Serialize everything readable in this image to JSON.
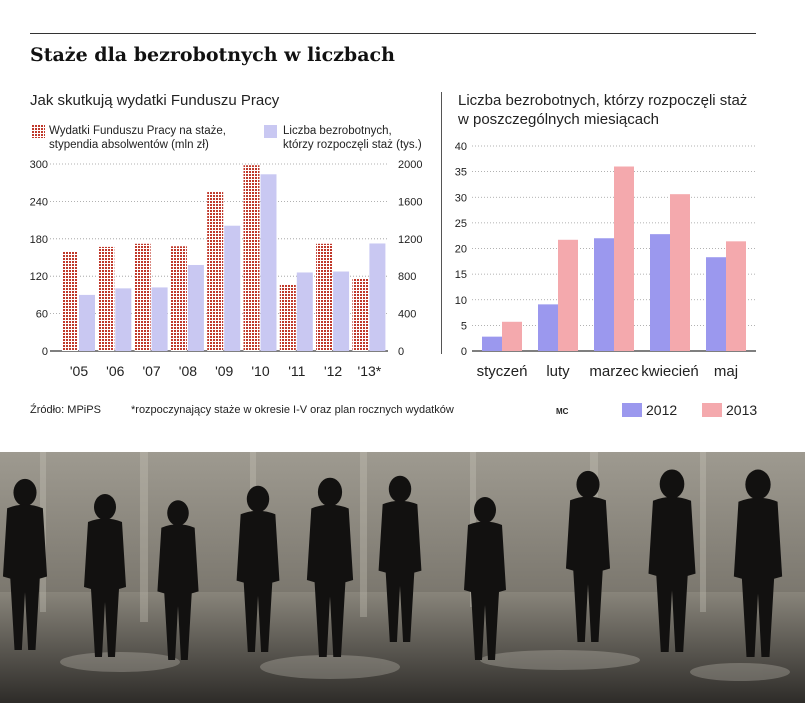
{
  "title": "Staże dla bezrobotnych w liczbach",
  "left": {
    "subtitle": "Jak skutkują wydatki Funduszu Pracy",
    "legend_a": [
      "Wydatki Funduszu Pracy na staże,",
      "stypendia absolwentów (mln zł)"
    ],
    "legend_b": [
      "Liczba bezrobotnych,",
      "którzy rozpoczęli staż (tys.)"
    ]
  },
  "right": {
    "subtitle_line1": "Liczba bezrobotnych, którzy rozpoczęli staż",
    "subtitle_line2": "w poszczególnych miesiącach"
  },
  "footer": {
    "source": "Źródło: MPiPS",
    "note": "*rozpoczynający staże w okresie I-V oraz plan rocznych wydatków",
    "mc": "MC",
    "legend_2012": "2012",
    "legend_2013": "2013"
  },
  "colors": {
    "dotted_red": "#c0392b",
    "lavender": "#c9c8f2",
    "blue_2012": "#9b98ee",
    "pink_2013": "#f4a9ad"
  },
  "chart_data": [
    {
      "type": "bar",
      "title": "Jak skutkują wydatki Funduszu Pracy",
      "categories": [
        "'05",
        "'06",
        "'07",
        "'08",
        "'09",
        "'10",
        "'11",
        "'12",
        "'13*"
      ],
      "series": [
        {
          "name": "Wydatki Funduszu Pracy na staże, stypendia absolwentów (mln zł)",
          "axis": "left",
          "values": [
            160,
            167,
            172,
            168,
            255,
            298,
            107,
            172,
            116
          ]
        },
        {
          "name": "Liczba bezrobotnych, którzy rozpoczęli staż (tys.)",
          "axis": "right",
          "values": [
            600,
            670,
            680,
            920,
            1340,
            1890,
            840,
            850,
            1150
          ]
        }
      ],
      "y_left": {
        "ticks": [
          0,
          60,
          120,
          180,
          240,
          300
        ],
        "ylim": [
          0,
          300
        ]
      },
      "y_right": {
        "ticks": [
          0,
          400,
          800,
          1200,
          1600,
          2000
        ],
        "ylim": [
          0,
          2000
        ]
      }
    },
    {
      "type": "bar",
      "title": "Liczba bezrobotnych, którzy rozpoczęli staż w poszczególnych miesiącach",
      "categories": [
        "styczeń",
        "luty",
        "marzec",
        "kwiecień",
        "maj"
      ],
      "series": [
        {
          "name": "2012",
          "values": [
            2.8,
            9.1,
            22.0,
            22.8,
            18.3
          ]
        },
        {
          "name": "2013",
          "values": [
            5.7,
            21.7,
            36.0,
            30.6,
            21.4
          ]
        }
      ],
      "ylim": [
        0,
        40
      ],
      "yticks": [
        0,
        5,
        10,
        15,
        20,
        25,
        30,
        35,
        40
      ]
    }
  ]
}
